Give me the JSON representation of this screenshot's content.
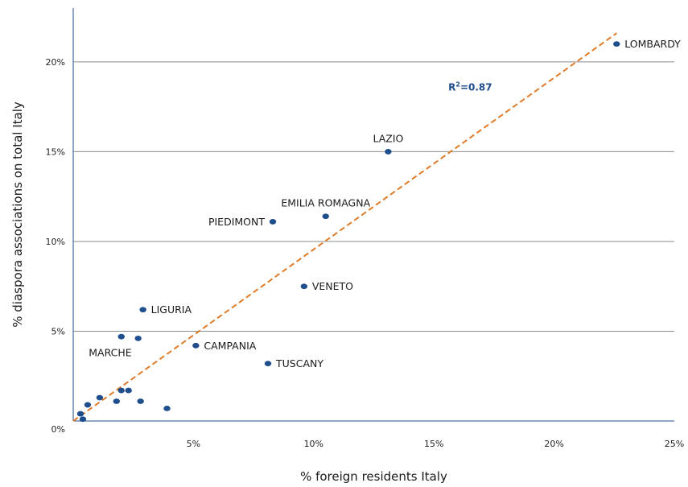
{
  "chart_data": {
    "type": "scatter",
    "title": "",
    "xlabel": "% foreign residents Italy",
    "ylabel": "% diaspora associations on total Italy",
    "xlim": [
      0,
      25
    ],
    "ylim": [
      0,
      23
    ],
    "x_ticks": [
      {
        "value": 5,
        "label": "5%"
      },
      {
        "value": 10,
        "label": "10%"
      },
      {
        "value": 15,
        "label": "15%"
      },
      {
        "value": 20,
        "label": "20%"
      },
      {
        "value": 25,
        "label": "25%"
      }
    ],
    "y_ticks": [
      {
        "value": 0,
        "label": "0%"
      },
      {
        "value": 5,
        "label": "5%"
      },
      {
        "value": 10,
        "label": "10%"
      },
      {
        "value": 15,
        "label": "15%"
      },
      {
        "value": 20,
        "label": "20%"
      }
    ],
    "grid": "horizontal",
    "point_color": "#1f4e8c",
    "trendline": {
      "color": "#e07b28",
      "style": "dashed",
      "x": [
        0,
        22.6
      ],
      "y": [
        0,
        21.6
      ]
    },
    "r_squared_label": {
      "base": "R",
      "sup": "2",
      "value": "=0.87",
      "color": "#1f4e8c",
      "x": 15.6,
      "y": 18.4
    },
    "points": [
      {
        "label": "LOMBARDY",
        "x": 22.6,
        "y": 21.0,
        "label_pos": "right"
      },
      {
        "label": "LAZIO",
        "x": 13.1,
        "y": 15.0,
        "label_pos": "top"
      },
      {
        "label": "EMILIA ROMAGNA",
        "x": 10.5,
        "y": 11.4,
        "label_pos": "top"
      },
      {
        "label": "PIEDIMONT",
        "x": 8.3,
        "y": 11.1,
        "label_pos": "left"
      },
      {
        "label": "VENETO",
        "x": 9.6,
        "y": 7.5,
        "label_pos": "right"
      },
      {
        "label": "LIGURIA",
        "x": 2.9,
        "y": 6.2,
        "label_pos": "right"
      },
      {
        "label": "",
        "x": 2.0,
        "y": 4.7
      },
      {
        "label": "MARCHE",
        "x": 2.7,
        "y": 4.6,
        "label_pos": "below-left"
      },
      {
        "label": "CAMPANIA",
        "x": 5.1,
        "y": 4.2,
        "label_pos": "right"
      },
      {
        "label": "TUSCANY",
        "x": 8.1,
        "y": 3.2,
        "label_pos": "right"
      },
      {
        "label": "",
        "x": 1.1,
        "y": 1.3
      },
      {
        "label": "",
        "x": 2.0,
        "y": 1.7
      },
      {
        "label": "",
        "x": 2.3,
        "y": 1.7
      },
      {
        "label": "",
        "x": 1.8,
        "y": 1.1
      },
      {
        "label": "",
        "x": 2.8,
        "y": 1.1
      },
      {
        "label": "",
        "x": 3.9,
        "y": 0.7
      },
      {
        "label": "",
        "x": 0.6,
        "y": 0.9
      },
      {
        "label": "",
        "x": 0.3,
        "y": 0.4
      },
      {
        "label": "",
        "x": 0.4,
        "y": 0.1
      }
    ]
  }
}
